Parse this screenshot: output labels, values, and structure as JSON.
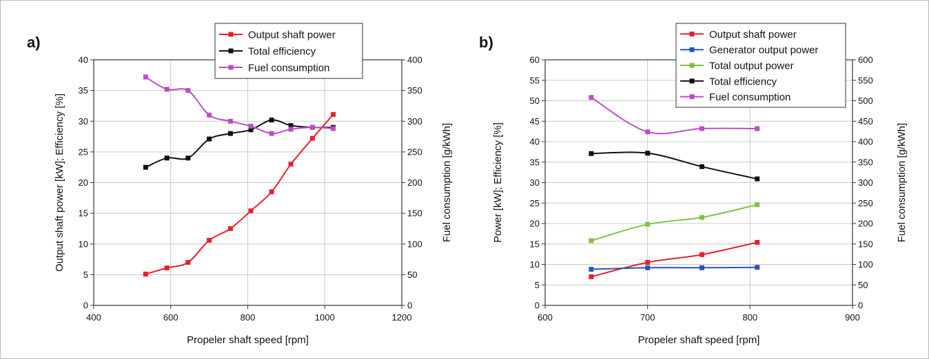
{
  "chart_data": [
    {
      "type": "line",
      "panel_label": "a)",
      "xlabel": "Propeler shaft speed [rpm]",
      "ylabel": "Output  shaft power [kW];  Efficiency [%]",
      "y2label": "Fuel consumption [g/kWh]",
      "xlim": [
        400,
        1200
      ],
      "xticks": [
        400,
        600,
        800,
        1000,
        1200
      ],
      "ylim": [
        0,
        40
      ],
      "yticks": [
        0,
        5,
        10,
        15,
        20,
        25,
        30,
        35,
        40
      ],
      "y2lim": [
        0,
        400
      ],
      "y2ticks": [
        0,
        50,
        100,
        150,
        200,
        250,
        300,
        350,
        400
      ],
      "grid": true,
      "legend_position": "top-right",
      "series": [
        {
          "name": "Output  shaft power",
          "color": "#e8202a",
          "axis": "left",
          "x": [
            535,
            590,
            645,
            700,
            755,
            808,
            862,
            912,
            968,
            1022
          ],
          "y": [
            5.1,
            6.1,
            7.0,
            10.6,
            12.5,
            15.4,
            18.5,
            23.0,
            27.2,
            31.1
          ]
        },
        {
          "name": "Total efficiency",
          "color": "#111111",
          "axis": "left",
          "x": [
            535,
            590,
            645,
            700,
            755,
            808,
            862,
            912,
            968,
            1022
          ],
          "y": [
            22.5,
            24.0,
            24.0,
            27.1,
            28.0,
            28.6,
            30.2,
            29.3,
            29.0,
            29.0
          ]
        },
        {
          "name": "Fuel consumption",
          "color": "#b84fc4",
          "axis": "right",
          "x": [
            535,
            590,
            645,
            700,
            755,
            808,
            862,
            912,
            968,
            1022
          ],
          "y": [
            372,
            352,
            350,
            310,
            300,
            292,
            280,
            287,
            290,
            288
          ]
        }
      ]
    },
    {
      "type": "line",
      "panel_label": "b)",
      "xlabel": "Propeler shaft speed [rpm]",
      "ylabel": "Power [kW];  Efficiency [%]",
      "y2label": "Fuel consumption [g/kWh]",
      "xlim": [
        600,
        900
      ],
      "xticks": [
        600,
        700,
        800,
        900
      ],
      "ylim": [
        0,
        60
      ],
      "yticks": [
        0,
        5,
        10,
        15,
        20,
        25,
        30,
        35,
        40,
        45,
        50,
        55,
        60
      ],
      "y2lim": [
        0,
        600
      ],
      "y2ticks": [
        0,
        50,
        100,
        150,
        200,
        250,
        300,
        350,
        400,
        450,
        500,
        550,
        600
      ],
      "grid": true,
      "legend_position": "top-right",
      "series": [
        {
          "name": "Output shaft power",
          "color": "#e8202a",
          "axis": "left",
          "x": [
            645,
            700,
            753,
            807
          ],
          "y": [
            7.0,
            10.5,
            12.4,
            15.4
          ]
        },
        {
          "name": "Generator output power",
          "color": "#2457b8",
          "axis": "left",
          "x": [
            645,
            700,
            753,
            807
          ],
          "y": [
            8.8,
            9.2,
            9.2,
            9.3
          ]
        },
        {
          "name": "Total output power",
          "color": "#7dc242",
          "axis": "left",
          "x": [
            645,
            700,
            753,
            807
          ],
          "y": [
            15.8,
            19.8,
            21.5,
            24.6
          ]
        },
        {
          "name": "Total efficiency",
          "color": "#111111",
          "axis": "left",
          "x": [
            645,
            700,
            753,
            807
          ],
          "y": [
            37.1,
            37.2,
            33.9,
            30.9
          ]
        },
        {
          "name": "Fuel consumption",
          "color": "#b84fc4",
          "axis": "right",
          "x": [
            645,
            700,
            753,
            807
          ],
          "y": [
            508,
            424,
            432,
            432
          ]
        }
      ]
    }
  ]
}
